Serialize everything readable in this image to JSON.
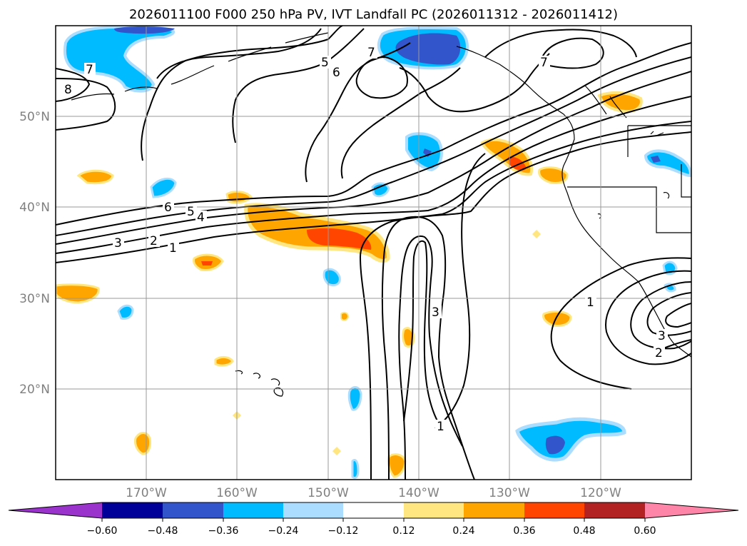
{
  "title": "2026011100 F000 250 hPa PV, IVT Landfall PC (2026011312 - 2026011412)",
  "map": {
    "lat_labels": [
      "50°N",
      "40°N",
      "30°N",
      "20°N"
    ],
    "lon_labels": [
      "170°W",
      "160°W",
      "150°W",
      "140°W",
      "130°W",
      "120°W"
    ],
    "contour_labels": [
      "8",
      "7",
      "5",
      "6",
      "7",
      "7",
      "6",
      "5",
      "4",
      "3",
      "2",
      "1",
      "3",
      "1",
      "1",
      "3",
      "2"
    ]
  },
  "colorbar": {
    "colors": [
      "#9933cc",
      "#000099",
      "#3355cc",
      "#00bbff",
      "#aaddff",
      "#ffffff",
      "#ffe680",
      "#ffa500",
      "#ff4500",
      "#b22222",
      "#ff85a8"
    ],
    "tick_labels": [
      "−0.60",
      "−0.48",
      "−0.36",
      "−0.24",
      "−0.12",
      "0.12",
      "0.24",
      "0.36",
      "0.48",
      "0.60"
    ]
  }
}
